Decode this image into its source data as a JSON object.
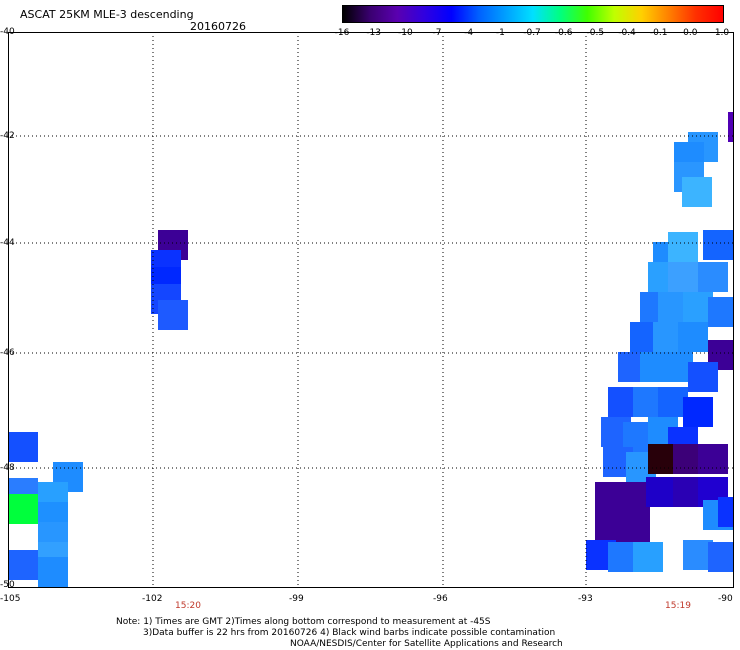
{
  "header": {
    "title": "ASCAT 25KM MLE-3 descending",
    "date": "20160726"
  },
  "colorbar": {
    "ticks": [
      "-16",
      "-13",
      "-10",
      "-7",
      "-4",
      "-1",
      "-0.7",
      "-0.6",
      "-0.5",
      "-0.4",
      "-0.1",
      "0.0",
      "1.0"
    ],
    "colors": [
      "#000000",
      "#3a0070",
      "#5a00b0",
      "#3000e0",
      "#0000ff",
      "#0060ff",
      "#00a0ff",
      "#00e0ff",
      "#00ff80",
      "#40ff00",
      "#c0ff00",
      "#ffd000",
      "#ff8000",
      "#ff3000",
      "#ff0000"
    ]
  },
  "axes": {
    "lat_labels": [
      "-40",
      "-42",
      "-44",
      "-46",
      "-48",
      "-50"
    ],
    "lon_labels": [
      "-105",
      "-102",
      "-99",
      "-96",
      "-93",
      "-90"
    ]
  },
  "time_labels": [
    "15:20",
    "15:19"
  ],
  "notes": {
    "line1": "Note: 1) Times are GMT 2)Times along bottom correspond to measurement at -45S",
    "line2": "3)Data buffer is 22 hrs from 20160726 4) Black wind barbs indicate possible contamination",
    "line3": "NOAA/NESDIS/Center for Satellite Applications and Research"
  },
  "colors": {
    "grid": "#000000",
    "time_label": "#c0392b"
  }
}
